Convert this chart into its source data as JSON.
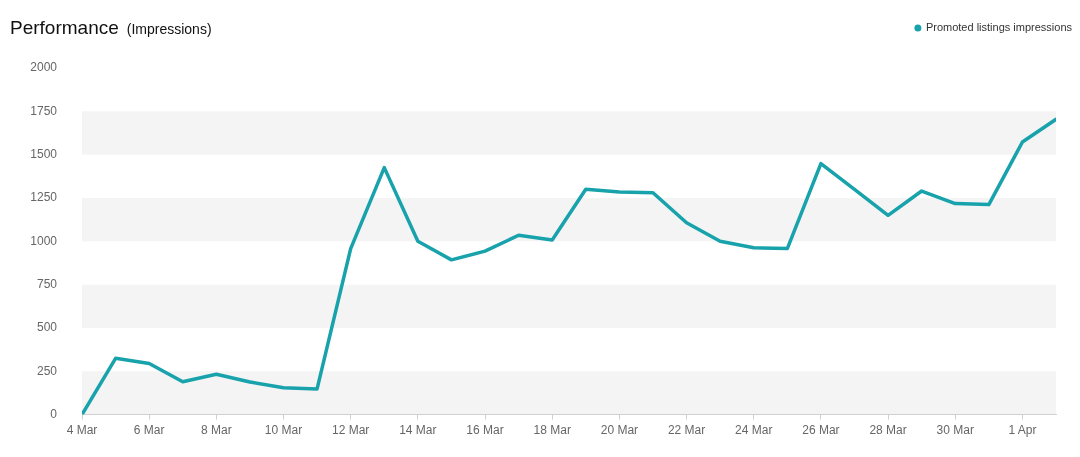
{
  "chart_data": {
    "type": "line",
    "title": "Performance",
    "subtitle": "(Impressions)",
    "x": [
      "--03-04",
      "--03-05",
      "--03-06",
      "--03-07",
      "--03-08",
      "--03-09",
      "--03-10",
      "--03-11",
      "--03-12",
      "--03-13",
      "--03-14",
      "--03-15",
      "--03-16",
      "--03-17",
      "--03-18",
      "--03-19",
      "--03-20",
      "--03-21",
      "--03-22",
      "--03-23",
      "--03-24",
      "--03-25",
      "--03-26",
      "--03-27",
      "--03-28",
      "--03-29",
      "--03-30",
      "--03-31",
      "--04-01",
      "--04-02"
    ],
    "series": [
      {
        "name": "Promoted listings impressions",
        "color": "#17a2ac",
        "values": [
          0,
          325,
          295,
          190,
          233,
          188,
          155,
          148,
          958,
          1425,
          1000,
          893,
          943,
          1035,
          1008,
          1300,
          1285,
          1280,
          1107,
          1000,
          963,
          958,
          1448,
          1300,
          1150,
          1290,
          1218,
          1212,
          1573,
          1704
        ]
      }
    ],
    "xlim": [
      "--03-04",
      "--04-02"
    ],
    "xticks": [
      {
        "value": "--03-04",
        "label": "4 Mar"
      },
      {
        "value": "--03-06",
        "label": "6 Mar"
      },
      {
        "value": "--03-08",
        "label": "8 Mar"
      },
      {
        "value": "--03-10",
        "label": "10 Mar"
      },
      {
        "value": "--03-12",
        "label": "12 Mar"
      },
      {
        "value": "--03-14",
        "label": "14 Mar"
      },
      {
        "value": "--03-16",
        "label": "16 Mar"
      },
      {
        "value": "--03-18",
        "label": "18 Mar"
      },
      {
        "value": "--03-20",
        "label": "20 Mar"
      },
      {
        "value": "--03-22",
        "label": "22 Mar"
      },
      {
        "value": "--03-24",
        "label": "24 Mar"
      },
      {
        "value": "--03-26",
        "label": "26 Mar"
      },
      {
        "value": "--03-28",
        "label": "28 Mar"
      },
      {
        "value": "--03-30",
        "label": "30 Mar"
      },
      {
        "value": "--04-01",
        "label": "1 Apr"
      }
    ],
    "ylim": [
      0,
      2000
    ],
    "yticks": [
      0,
      250,
      500,
      750,
      1000,
      1250,
      1500,
      1750,
      2000
    ],
    "bands": [
      {
        "axis": "y",
        "from": 0,
        "to": 250,
        "color": "#f4f4f4"
      },
      {
        "axis": "y",
        "from": 500,
        "to": 750,
        "color": "#f4f4f4"
      },
      {
        "axis": "y",
        "from": 1000,
        "to": 1250,
        "color": "#f4f4f4"
      },
      {
        "axis": "y",
        "from": 1500,
        "to": 1750,
        "color": "#f4f4f4"
      }
    ],
    "legend": "top right",
    "marker": "none",
    "line_style": "solid"
  }
}
